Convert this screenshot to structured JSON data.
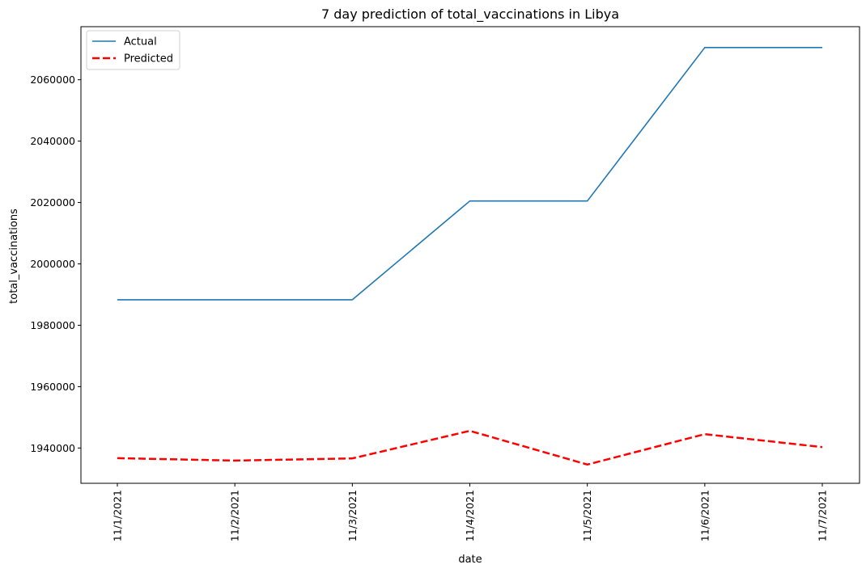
{
  "chart_data": {
    "type": "line",
    "title": "7 day prediction of total_vaccinations in Libya",
    "xlabel": "date",
    "ylabel": "total_vaccinations",
    "categories": [
      "11/1/2021",
      "11/2/2021",
      "11/3/2021",
      "11/4/2021",
      "11/5/2021",
      "11/6/2021",
      "11/7/2021"
    ],
    "ylim": [
      1928500,
      2077300
    ],
    "yticks": [
      1940000,
      1960000,
      1980000,
      2000000,
      2020000,
      2040000,
      2060000
    ],
    "grid": false,
    "legend_position": "top-left",
    "series": [
      {
        "name": "Actual",
        "color": "#1f77b4",
        "style": "solid",
        "values": [
          1988300,
          1988300,
          1988300,
          2020500,
          2020500,
          2070500,
          2070500
        ]
      },
      {
        "name": "Predicted",
        "color": "#ff0000",
        "style": "dashed",
        "values": [
          1936700,
          1935900,
          1936600,
          1945600,
          1934600,
          1944500,
          1940300
        ]
      }
    ]
  }
}
